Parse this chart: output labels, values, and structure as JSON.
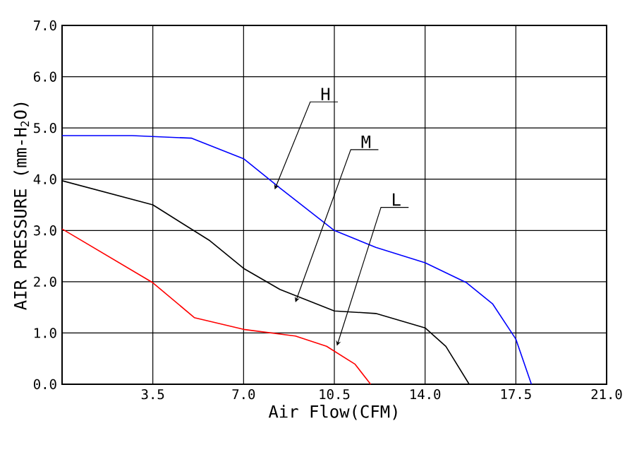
{
  "chart_data": {
    "type": "line",
    "xlabel": "Air Flow(CFM)",
    "ylabel": "AIR PRESSURE (mm-H$_{2}$O)",
    "xlim": [
      0,
      21
    ],
    "ylim": [
      0,
      7
    ],
    "xticks": [
      3.5,
      {
        "value": 7,
        "label": "7.0"
      },
      10.5,
      {
        "value": 14,
        "label": "14.0"
      },
      17.5,
      {
        "value": 21,
        "label": "21.0"
      }
    ],
    "yticks": [
      {
        "value": 0,
        "label": "0.0"
      },
      {
        "value": 1,
        "label": "1.0"
      },
      {
        "value": 2,
        "label": "2.0"
      },
      {
        "value": 3,
        "label": "3.0"
      },
      {
        "value": 4,
        "label": "4.0"
      },
      {
        "value": 5,
        "label": "5.0"
      },
      {
        "value": 6,
        "label": "6.0"
      },
      {
        "value": 7,
        "label": "7.0"
      }
    ],
    "grid": true,
    "marker": "none",
    "line_style": "solid",
    "series": [
      {
        "color": "#0000ff",
        "x": [
          0,
          2.7,
          5.0,
          7.0,
          8.4,
          10.5,
          12.1,
          14.0,
          15.6,
          16.6,
          17.5,
          18.1
        ],
        "values": [
          4.85,
          4.85,
          4.8,
          4.4,
          3.83,
          3.0,
          2.67,
          2.37,
          1.98,
          1.57,
          0.88,
          0
        ]
      },
      {
        "color": "#000000",
        "x": [
          0,
          3.5,
          5.7,
          7.0,
          8.4,
          10.5,
          12.1,
          14.0,
          14.8,
          15.7
        ],
        "values": [
          3.97,
          3.5,
          2.8,
          2.26,
          1.85,
          1.43,
          1.38,
          1.1,
          0.74,
          0
        ]
      },
      {
        "color": "#ff0000",
        "x": [
          0,
          3.5,
          5.1,
          7.0,
          9.0,
          10.2,
          11.3,
          11.9
        ],
        "values": [
          3.03,
          1.98,
          1.3,
          1.07,
          0.94,
          0.74,
          0.39,
          0
        ]
      }
    ],
    "annotations": [
      {
        "text": "H",
        "x": 8.2,
        "y": 3.8
      },
      {
        "text": "M",
        "x": 9.0,
        "y": 1.6
      },
      {
        "text": "L",
        "x": 10.6,
        "y": 0.75
      }
    ]
  }
}
